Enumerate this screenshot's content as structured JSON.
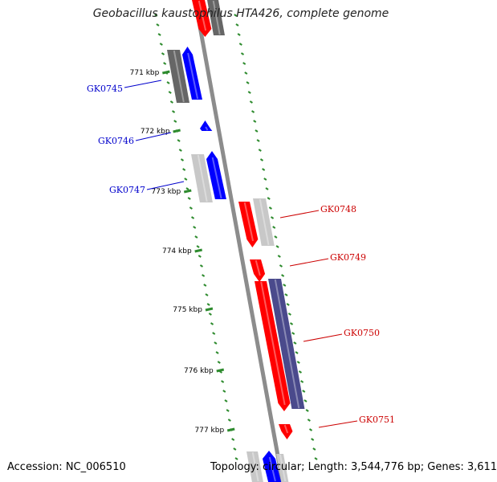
{
  "title": "Geobacillus kaustophilus HTA426, complete genome",
  "accession": "Accession: NC_006510",
  "topology": "Topology: circular; Length: 3,544,776 bp; Genes: 3,611",
  "colors": {
    "backbone": "#8c8c8c",
    "forward_gene": "#ff0000",
    "reverse_gene": "#0000ff",
    "gene_label_forward": "#cc0000",
    "gene_label_reverse": "#0000cc",
    "dark_gray_block": "#666666",
    "light_gray_block": "#c8c8c8",
    "navy_block": "#4a4a8c",
    "dotted_track": "#2e8b2e"
  },
  "ticks": [
    "771 kbp",
    "772 kbp",
    "773 kbp",
    "774 kbp",
    "775 kbp",
    "776 kbp",
    "777 kbp"
  ],
  "genes": [
    {
      "label": "GK0745",
      "strand": "reverse"
    },
    {
      "label": "GK0746",
      "strand": "reverse"
    },
    {
      "label": "GK0747",
      "strand": "reverse"
    },
    {
      "label": "GK0748",
      "strand": "forward"
    },
    {
      "label": "GK0749",
      "strand": "forward"
    },
    {
      "label": "GK0750",
      "strand": "forward"
    },
    {
      "label": "GK0751",
      "strand": "forward"
    }
  ]
}
